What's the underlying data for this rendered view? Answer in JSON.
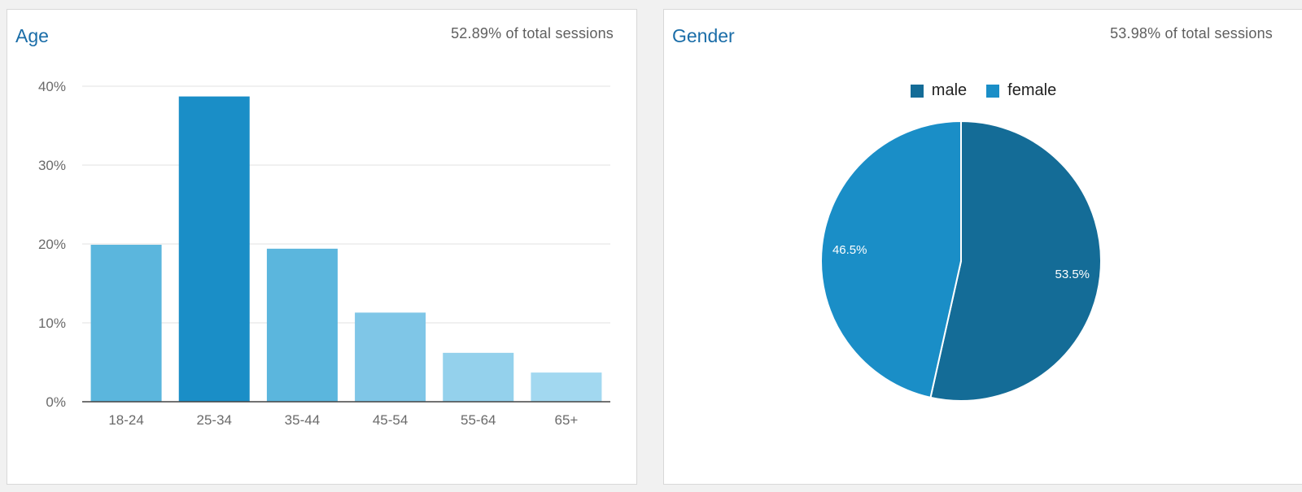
{
  "age_panel": {
    "title": "Age",
    "subtitle": "52.89% of total sessions"
  },
  "gender_panel": {
    "title": "Gender",
    "subtitle": "53.98% of total sessions"
  },
  "chart_data": [
    {
      "type": "bar",
      "title": "Age",
      "categories": [
        "18-24",
        "25-34",
        "35-44",
        "45-54",
        "55-64",
        "65+"
      ],
      "values": [
        19.9,
        38.7,
        19.4,
        11.3,
        6.2,
        3.7
      ],
      "colors": [
        "#5bb6dd",
        "#1a8ec7",
        "#5bb6dd",
        "#7fc6e7",
        "#94d1ec",
        "#a2d8f0"
      ],
      "ylim": [
        0,
        40
      ],
      "yticks": [
        0,
        10,
        20,
        30,
        40
      ],
      "ytick_labels": [
        "0%",
        "10%",
        "20%",
        "30%",
        "40%"
      ],
      "grid": true
    },
    {
      "type": "pie",
      "title": "Gender",
      "labels": [
        "male",
        "female"
      ],
      "values": [
        53.5,
        46.5
      ],
      "value_labels": [
        "53.5%",
        "46.5%"
      ],
      "colors": [
        "#146c97",
        "#1a8ec7"
      ],
      "legend": "top"
    }
  ]
}
